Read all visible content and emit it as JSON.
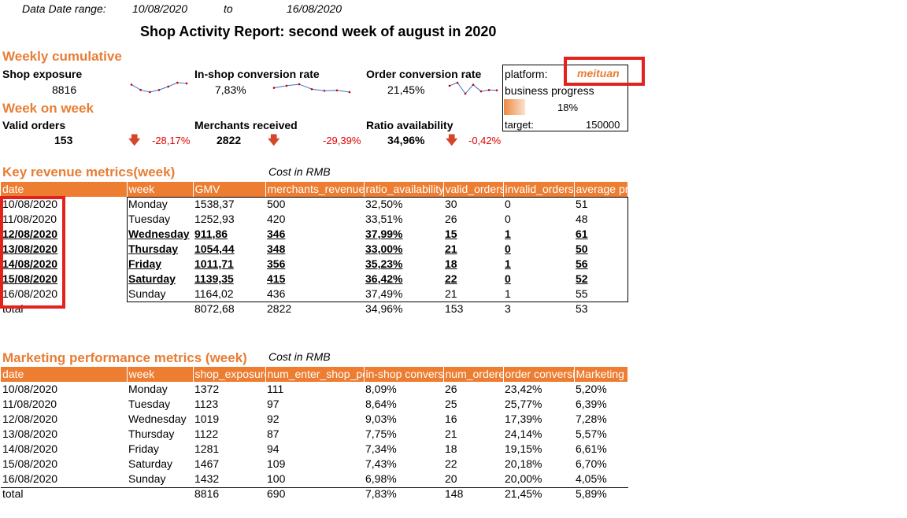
{
  "header": {
    "date_range_label": "Data Date range:",
    "date_from": "10/08/2020",
    "to_label": "to",
    "date_to": "16/08/2020",
    "title": "Shop Activity Report: second week of august in 2020"
  },
  "weekly": {
    "section_title": "Weekly cumulative",
    "shop_exposure_label": "Shop exposure",
    "shop_exposure_value": "8816",
    "inshop_label": "In-shop conversion rate",
    "inshop_value": "7,83%",
    "order_conv_label": "Order conversion rate",
    "order_conv_value": "21,45%"
  },
  "wow": {
    "section_title": "Week on week",
    "valid_orders_label": "Valid orders",
    "valid_orders_value": "153",
    "valid_orders_change": "-28,17%",
    "merchants_label": "Merchants received",
    "merchants_value": "2822",
    "merchants_change": "-29,39%",
    "ratio_label": "Ratio availability",
    "ratio_value": "34,96%",
    "ratio_change": "-0,42%"
  },
  "panel": {
    "platform_label": "platform:",
    "platform_value": "meituan",
    "progress_label": "business progress",
    "progress_value": "18%",
    "progress_fraction": 0.18,
    "target_label": "target:",
    "target_value": "150000"
  },
  "sparklines": {
    "shop_exposure": [
      1372,
      1123,
      1019,
      1122,
      1281,
      1467,
      1432
    ],
    "inshop": [
      8.09,
      8.64,
      9.03,
      7.75,
      7.34,
      7.43,
      6.98
    ],
    "order_conv": [
      23.42,
      25.77,
      17.39,
      24.14,
      19.15,
      20.18,
      20.0
    ]
  },
  "revenue": {
    "title": "Key revenue metrics(week)",
    "cost_note": "Cost in RMB",
    "columns": [
      "date",
      "week",
      "GMV",
      "merchants_revenue",
      "ratio_availability",
      "valid_orders",
      "invalid_orders",
      "average pr"
    ],
    "rows": [
      [
        "10/08/2020",
        "Monday",
        "1538,37",
        "500",
        "32,50%",
        "30",
        "0",
        "51"
      ],
      [
        "11/08/2020",
        "Tuesday",
        "1252,93",
        "420",
        "33,51%",
        "26",
        "0",
        "48"
      ],
      [
        "12/08/2020",
        "Wednesday",
        "911,86",
        "346",
        "37,99%",
        "15",
        "1",
        "61"
      ],
      [
        "13/08/2020",
        "Thursday",
        "1054,44",
        "348",
        "33,00%",
        "21",
        "0",
        "50"
      ],
      [
        "14/08/2020",
        "Friday",
        "1011,71",
        "356",
        "35,23%",
        "18",
        "1",
        "56"
      ],
      [
        "15/08/2020",
        "Saturday",
        "1139,35",
        "415",
        "36,42%",
        "22",
        "0",
        "52"
      ],
      [
        "16/08/2020",
        "Sunday",
        "1164,02",
        "436",
        "37,49%",
        "21",
        "1",
        "55"
      ]
    ],
    "total": [
      "total",
      "",
      "8072,68",
      "2822",
      "34,96%",
      "153",
      "3",
      "53"
    ]
  },
  "marketing": {
    "title": "Marketing performance metrics (week)",
    "cost_note": "Cost in RMB",
    "columns": [
      "date",
      "week",
      "shop_exposure",
      "num_enter_shop_pe",
      "in-shop convers",
      "num_ordere",
      "order conversio",
      "Marketing r"
    ],
    "rows": [
      [
        "10/08/2020",
        "Monday",
        "1372",
        "111",
        "8,09%",
        "26",
        "23,42%",
        "5,20%"
      ],
      [
        "11/08/2020",
        "Tuesday",
        "1123",
        "97",
        "8,64%",
        "25",
        "25,77%",
        "6,39%"
      ],
      [
        "12/08/2020",
        "Wednesday",
        "1019",
        "92",
        "9,03%",
        "16",
        "17,39%",
        "7,28%"
      ],
      [
        "13/08/2020",
        "Thursday",
        "1122",
        "87",
        "7,75%",
        "21",
        "24,14%",
        "5,57%"
      ],
      [
        "14/08/2020",
        "Friday",
        "1281",
        "94",
        "7,34%",
        "18",
        "19,15%",
        "6,61%"
      ],
      [
        "15/08/2020",
        "Saturday",
        "1467",
        "109",
        "7,43%",
        "22",
        "20,18%",
        "6,70%"
      ],
      [
        "16/08/2020",
        "Sunday",
        "1432",
        "100",
        "6,98%",
        "20",
        "20,00%",
        "4,05%"
      ]
    ],
    "total": [
      "total",
      "",
      "8816",
      "690",
      "7,83%",
      "148",
      "21,45%",
      "5,89%"
    ]
  },
  "colors": {
    "accent": "#ED7D31",
    "section_text": "#E87D34",
    "negative": "#E60000",
    "highlight_box": "#E3211D"
  }
}
